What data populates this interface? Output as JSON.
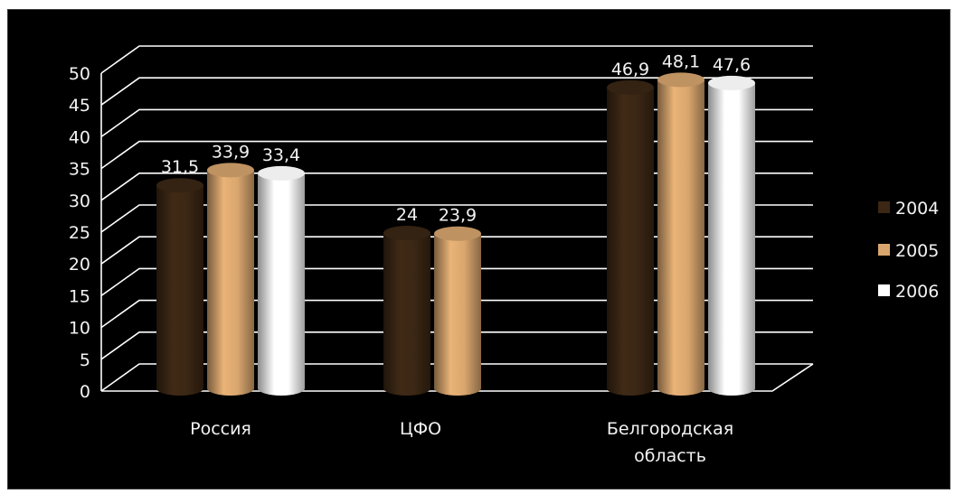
{
  "chart_data": {
    "type": "bar",
    "title": "",
    "xlabel": "",
    "ylabel": "",
    "ylim": [
      0,
      50
    ],
    "yticks": [
      0,
      5,
      10,
      15,
      20,
      25,
      30,
      35,
      40,
      45,
      50
    ],
    "yticks_text": [
      "0",
      "5",
      "10",
      "15",
      "20",
      "25",
      "30",
      "35",
      "40",
      "45",
      "50"
    ],
    "grid": true,
    "legend_position": "right",
    "categories": [
      [
        "Россия"
      ],
      [
        "ЦФО"
      ],
      [
        "Белгородская",
        "область"
      ]
    ],
    "series": [
      {
        "name": "2004",
        "color": "#3b2714",
        "values": [
          31.5,
          24,
          46.9
        ],
        "labels": [
          "31,5",
          "24",
          "46,9"
        ]
      },
      {
        "name": "2005",
        "color": "#d9a66e",
        "values": [
          33.9,
          23.9,
          48.1
        ],
        "labels": [
          "33,9",
          "23,9",
          "48,1"
        ]
      },
      {
        "name": "2006",
        "color": "#ffffff",
        "values": [
          33.4,
          null,
          47.6
        ],
        "labels": [
          "33,4",
          "",
          "47,6"
        ]
      }
    ]
  }
}
